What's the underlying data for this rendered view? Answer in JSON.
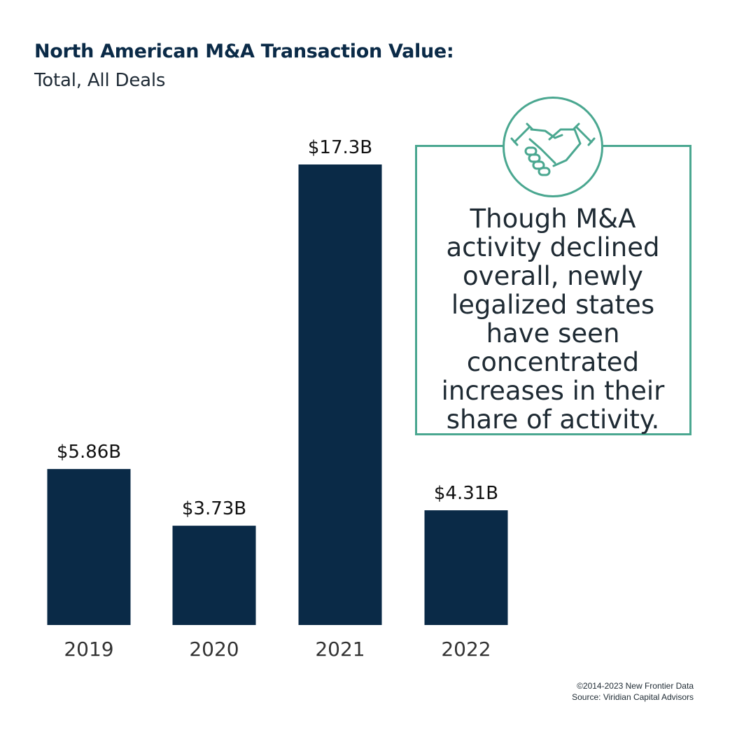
{
  "header": {
    "title": "North American M&A Transaction Value:",
    "subtitle": "Total, All Deals"
  },
  "chart_data": {
    "type": "bar",
    "categories": [
      "2019",
      "2020",
      "2021",
      "2022"
    ],
    "values": [
      5.86,
      3.73,
      17.3,
      4.31
    ],
    "value_labels": [
      "$5.86B",
      "$3.73B",
      "$17.3B",
      "$4.31B"
    ],
    "title": "North American M&A Transaction Value:",
    "subtitle": "Total, All Deals",
    "xlabel": "",
    "ylabel": "",
    "ylim": [
      0,
      17.3
    ],
    "grid": false,
    "bar_color": "#0a2a47"
  },
  "callout": {
    "text": "Though M&A activity declined overall, newly legalized states have seen concentrated increases in their share of activity.",
    "icon": "handshake-icon",
    "accent_color": "#4aa790"
  },
  "footer": {
    "copyright": "©2014-2023  New Frontier Data",
    "source": "Source: Viridian Capital Advisors"
  }
}
